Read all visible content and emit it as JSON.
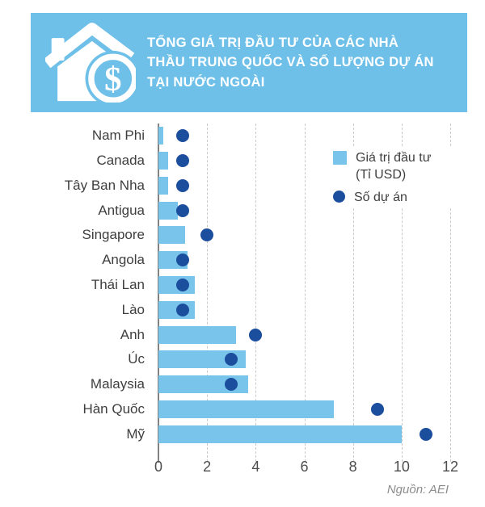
{
  "header": {
    "title": "TỔNG GIÁ TRỊ ĐẦU TƯ CỦA CÁC NHÀ THẦU TRUNG QUỐC VÀ SỐ LƯỢNG DỰ ÁN TẠI NƯỚC NGOÀI",
    "icon": "house-dollar-icon"
  },
  "colors": {
    "banner": "#6FC0E9",
    "bar": "#79C4EB",
    "dot": "#1C4E9E"
  },
  "legend": {
    "bar_label": "Giá trị đầu tư (Tỉ USD)",
    "dot_label": "Số dự án"
  },
  "chart_data": {
    "type": "bar",
    "orientation": "horizontal",
    "title": "TỔNG GIÁ TRỊ ĐẦU TƯ CỦA CÁC NHÀ THẦU TRUNG QUỐC VÀ SỐ LƯỢNG DỰ ÁN TẠI NƯỚC NGOÀI",
    "categories": [
      "Nam Phi",
      "Canada",
      "Tây Ban Nha",
      "Antigua",
      "Singapore",
      "Angola",
      "Thái Lan",
      "Lào",
      "Anh",
      "Úc",
      "Malaysia",
      "Hàn Quốc",
      "Mỹ"
    ],
    "series": [
      {
        "name": "Giá trị đầu tư (Tỉ USD)",
        "type": "bar",
        "color": "#79C4EB",
        "values": [
          0.2,
          0.4,
          0.4,
          0.8,
          1.1,
          1.2,
          1.5,
          1.5,
          3.2,
          3.6,
          3.7,
          7.2,
          10
        ]
      },
      {
        "name": "Số dự án",
        "type": "point",
        "color": "#1C4E9E",
        "values": [
          1,
          1,
          1,
          1,
          2,
          1,
          1,
          1,
          4,
          3,
          3,
          9,
          11
        ]
      }
    ],
    "xlim": [
      0,
      12
    ],
    "xticks": [
      0,
      2,
      4,
      6,
      8,
      10,
      12
    ],
    "grid": "dashed-vertical",
    "legend_position": "top-right"
  },
  "source": {
    "text": "Nguồn: AEI"
  }
}
